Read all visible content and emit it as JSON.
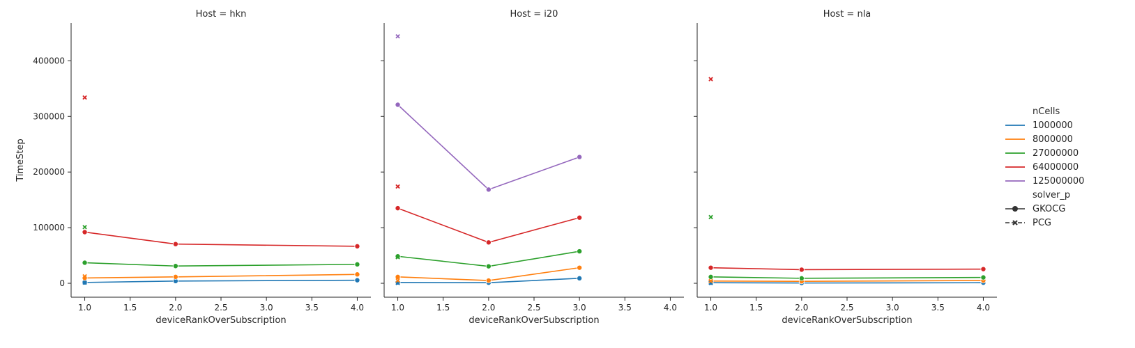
{
  "chart_data": {
    "type": "line",
    "facet_key": "Host",
    "xlabel": "deviceRankOverSubscription",
    "ylabel": "TimeStep",
    "xlim": [
      0.85,
      4.15
    ],
    "ylim": [
      -25000,
      468000
    ],
    "x_ticks": [
      "1.0",
      "1.5",
      "2.0",
      "2.5",
      "3.0",
      "3.5",
      "4.0"
    ],
    "x_tick_values": [
      1.0,
      1.5,
      2.0,
      2.5,
      3.0,
      3.5,
      4.0
    ],
    "y_ticks": [
      "0",
      "100000",
      "200000",
      "300000",
      "400000"
    ],
    "y_tick_values": [
      0,
      100000,
      200000,
      300000,
      400000
    ],
    "legend": {
      "hue_title": "nCells",
      "hue_entries": [
        {
          "label": "1000000",
          "color": "#1f77b4"
        },
        {
          "label": "8000000",
          "color": "#ff7f0e"
        },
        {
          "label": "27000000",
          "color": "#2ca02c"
        },
        {
          "label": "64000000",
          "color": "#d62728"
        },
        {
          "label": "125000000",
          "color": "#9467bd"
        }
      ],
      "style_title": "solver_p",
      "style_entries": [
        {
          "label": "GKOCG",
          "marker": "circle",
          "dash": "solid"
        },
        {
          "label": "PCG",
          "marker": "x",
          "dash": "dashed"
        }
      ]
    },
    "panels": [
      {
        "title": "Host = hkn",
        "series": [
          {
            "ncells_index": 0,
            "solver": "GKOCG",
            "x": [
              1,
              2,
              4
            ],
            "y": [
              1500,
              4000,
              5500
            ]
          },
          {
            "ncells_index": 1,
            "solver": "GKOCG",
            "x": [
              1,
              2,
              4
            ],
            "y": [
              9500,
              11500,
              16000
            ]
          },
          {
            "ncells_index": 2,
            "solver": "GKOCG",
            "x": [
              1,
              2,
              4
            ],
            "y": [
              37000,
              31000,
              34000
            ]
          },
          {
            "ncells_index": 3,
            "solver": "GKOCG",
            "x": [
              1,
              2,
              4
            ],
            "y": [
              92000,
              70500,
              66500
            ]
          },
          {
            "ncells_index": 0,
            "solver": "PCG",
            "x": [
              1
            ],
            "y": [
              1200
            ]
          },
          {
            "ncells_index": 1,
            "solver": "PCG",
            "x": [
              1
            ],
            "y": [
              12500
            ]
          },
          {
            "ncells_index": 2,
            "solver": "PCG",
            "x": [
              1
            ],
            "y": [
              101000
            ]
          },
          {
            "ncells_index": 3,
            "solver": "PCG",
            "x": [
              1
            ],
            "y": [
              334000
            ]
          }
        ]
      },
      {
        "title": "Host = i20",
        "series": [
          {
            "ncells_index": 0,
            "solver": "GKOCG",
            "x": [
              1,
              2,
              3
            ],
            "y": [
              1500,
              1000,
              9000
            ]
          },
          {
            "ncells_index": 1,
            "solver": "GKOCG",
            "x": [
              1,
              2,
              3
            ],
            "y": [
              11500,
              5000,
              28000
            ]
          },
          {
            "ncells_index": 2,
            "solver": "GKOCG",
            "x": [
              1,
              2,
              3
            ],
            "y": [
              48500,
              30500,
              57500
            ]
          },
          {
            "ncells_index": 3,
            "solver": "GKOCG",
            "x": [
              1,
              2,
              3
            ],
            "y": [
              135000,
              73500,
              118000
            ]
          },
          {
            "ncells_index": 4,
            "solver": "GKOCG",
            "x": [
              1,
              2,
              3
            ],
            "y": [
              321000,
              168500,
              227000
            ]
          },
          {
            "ncells_index": 0,
            "solver": "PCG",
            "x": [
              1
            ],
            "y": [
              500
            ]
          },
          {
            "ncells_index": 1,
            "solver": "PCG",
            "x": [
              1
            ],
            "y": [
              5000
            ]
          },
          {
            "ncells_index": 2,
            "solver": "PCG",
            "x": [
              1
            ],
            "y": [
              47000
            ]
          },
          {
            "ncells_index": 3,
            "solver": "PCG",
            "x": [
              1
            ],
            "y": [
              174000
            ]
          },
          {
            "ncells_index": 4,
            "solver": "PCG",
            "x": [
              1
            ],
            "y": [
              444000
            ]
          }
        ]
      },
      {
        "title": "Host = nla",
        "series": [
          {
            "ncells_index": 0,
            "solver": "GKOCG",
            "x": [
              1,
              2,
              4
            ],
            "y": [
              1000,
              500,
              1000
            ]
          },
          {
            "ncells_index": 1,
            "solver": "GKOCG",
            "x": [
              1,
              2,
              4
            ],
            "y": [
              4000,
              3500,
              5000
            ]
          },
          {
            "ncells_index": 2,
            "solver": "GKOCG",
            "x": [
              1,
              2,
              4
            ],
            "y": [
              11500,
              9000,
              10500
            ]
          },
          {
            "ncells_index": 3,
            "solver": "GKOCG",
            "x": [
              1,
              2,
              4
            ],
            "y": [
              28000,
              24500,
              25500
            ]
          },
          {
            "ncells_index": 0,
            "solver": "PCG",
            "x": [
              1
            ],
            "y": [
              500
            ]
          },
          {
            "ncells_index": 1,
            "solver": "PCG",
            "x": [
              1
            ],
            "y": [
              4000
            ]
          },
          {
            "ncells_index": 2,
            "solver": "PCG",
            "x": [
              1
            ],
            "y": [
              119000
            ]
          },
          {
            "ncells_index": 3,
            "solver": "PCG",
            "x": [
              1
            ],
            "y": [
              367000
            ]
          }
        ]
      }
    ]
  }
}
